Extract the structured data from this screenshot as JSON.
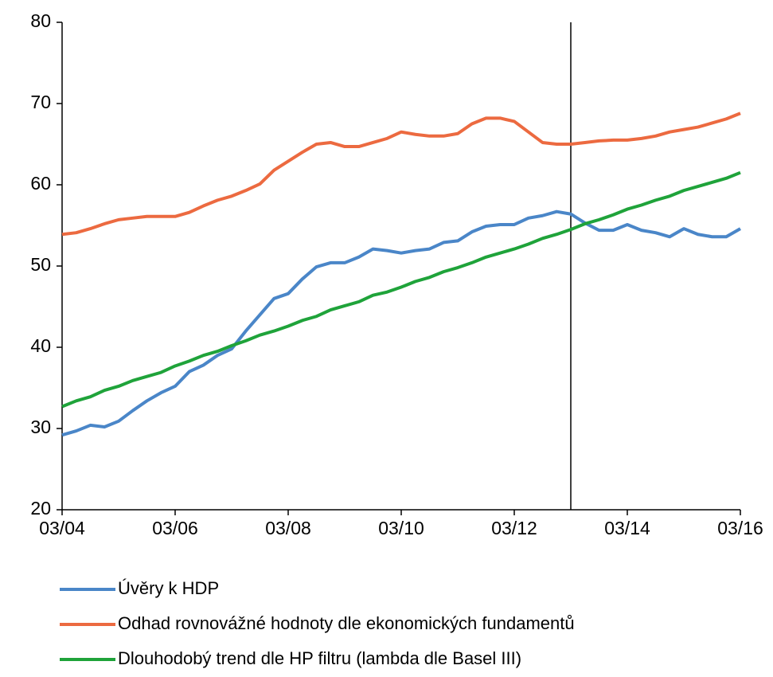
{
  "chart_data": {
    "type": "line",
    "categories": [
      "03/04",
      null,
      null,
      null,
      null,
      null,
      null,
      null,
      "03/06",
      null,
      null,
      null,
      null,
      null,
      null,
      null,
      "03/08",
      null,
      null,
      null,
      null,
      null,
      null,
      null,
      "03/10",
      null,
      null,
      null,
      null,
      null,
      null,
      null,
      "03/12",
      null,
      null,
      null,
      null,
      null,
      null,
      null,
      "03/14",
      null,
      null,
      null,
      null,
      null,
      null,
      null,
      "03/16"
    ],
    "series": [
      {
        "name": "Úvěry k HDP",
        "color": "#4a86c8",
        "values": [
          29.2,
          29.7,
          30.4,
          30.2,
          30.9,
          32.2,
          33.4,
          34.4,
          35.2,
          37.0,
          37.8,
          39.0,
          39.8,
          42.0,
          44.0,
          46.0,
          46.6,
          48.4,
          49.9,
          50.4,
          50.4,
          51.1,
          52.1,
          51.9,
          51.6,
          51.9,
          52.1,
          52.9,
          53.1,
          54.2,
          54.9,
          55.1,
          55.1,
          55.9,
          56.2,
          56.7,
          56.4,
          55.3,
          54.4,
          54.4,
          55.1,
          54.4,
          54.1,
          53.6,
          54.6,
          53.9,
          53.6,
          53.6,
          54.6
        ]
      },
      {
        "name": "Odhad rovnovážné hodnoty dle ekonomických fundamentů",
        "color": "#ec6a40",
        "values": [
          53.9,
          54.1,
          54.6,
          55.2,
          55.7,
          55.9,
          56.1,
          56.1,
          56.1,
          56.6,
          57.4,
          58.1,
          58.6,
          59.3,
          60.1,
          61.8,
          62.9,
          64.0,
          65.0,
          65.2,
          64.7,
          64.7,
          65.2,
          65.7,
          66.5,
          66.2,
          66.0,
          66.0,
          66.3,
          67.5,
          68.2,
          68.2,
          67.8,
          66.5,
          65.2,
          65.0,
          65.0,
          65.2,
          65.4,
          65.5,
          65.5,
          65.7,
          66.0,
          66.5,
          66.8,
          67.1,
          67.6,
          68.1,
          68.8
        ]
      },
      {
        "name": "Dlouhodobý trend dle HP filtru (lambda dle Basel III)",
        "color": "#1fa33a",
        "values": [
          32.7,
          33.4,
          33.9,
          34.7,
          35.2,
          35.9,
          36.4,
          36.9,
          37.7,
          38.3,
          39.0,
          39.5,
          40.2,
          40.8,
          41.5,
          42.0,
          42.6,
          43.3,
          43.8,
          44.6,
          45.1,
          45.6,
          46.4,
          46.8,
          47.4,
          48.1,
          48.6,
          49.3,
          49.8,
          50.4,
          51.1,
          51.6,
          52.1,
          52.7,
          53.4,
          53.9,
          54.5,
          55.2,
          55.7,
          56.3,
          57.0,
          57.5,
          58.1,
          58.6,
          59.3,
          59.8,
          60.3,
          60.8,
          61.5
        ]
      }
    ],
    "ylim": [
      20,
      80
    ],
    "yticks": [
      20,
      30,
      40,
      50,
      60,
      70,
      80
    ],
    "grid": false,
    "legend": "bottom"
  }
}
